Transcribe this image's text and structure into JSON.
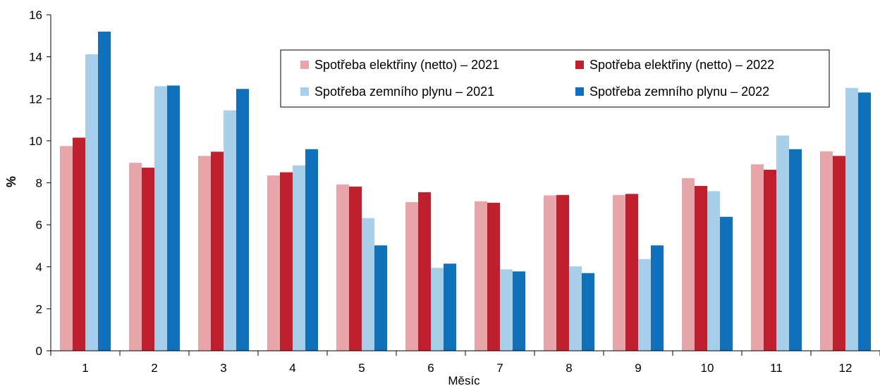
{
  "chart_data": {
    "type": "bar",
    "xlabel": "Měsíc",
    "ylabel": "%",
    "ylim": [
      0,
      16
    ],
    "yticks": [
      0,
      2,
      4,
      6,
      8,
      10,
      12,
      14,
      16
    ],
    "categories": [
      "1",
      "2",
      "3",
      "4",
      "5",
      "6",
      "7",
      "8",
      "9",
      "10",
      "11",
      "12"
    ],
    "legend_position": "top-right",
    "series": [
      {
        "name": "Spotřeba elektřiny (netto) – 2021",
        "color": "#e8a5aa",
        "values": [
          9.75,
          8.95,
          9.28,
          8.35,
          7.92,
          7.08,
          7.12,
          7.4,
          7.42,
          8.22,
          8.88,
          9.5
        ]
      },
      {
        "name": "Spotřeba elektřiny (netto) – 2022",
        "color": "#c0202e",
        "values": [
          10.15,
          8.72,
          9.48,
          8.5,
          7.82,
          7.55,
          7.05,
          7.42,
          7.47,
          7.85,
          8.62,
          9.28
        ]
      },
      {
        "name": "Spotřeba zemního plynu – 2021",
        "color": "#a8cfea",
        "values": [
          14.12,
          12.6,
          11.45,
          8.83,
          6.32,
          3.95,
          3.88,
          4.02,
          4.37,
          7.6,
          10.25,
          12.52
        ]
      },
      {
        "name": "Spotřeba zemního plynu – 2022",
        "color": "#1071bb",
        "values": [
          15.2,
          12.63,
          12.47,
          9.6,
          5.02,
          4.15,
          3.78,
          3.7,
          5.02,
          6.38,
          9.6,
          12.3
        ]
      }
    ]
  }
}
